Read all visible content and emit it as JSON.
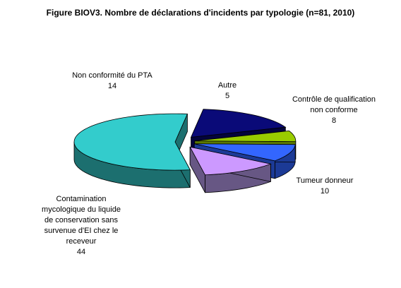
{
  "chart_data": {
    "type": "pie",
    "title": "Figure BIOV3. Nombre de déclarations d'incidents par typologie (n=81, 2010)",
    "slices": [
      {
        "label_lines": [
          "Non conformité du PTA"
        ],
        "value": 14,
        "color": "#0a0a78",
        "side_color": "#04043c"
      },
      {
        "label_lines": [
          "Autre"
        ],
        "value": 5,
        "color": "#99cc00",
        "side_color": "#5a7800"
      },
      {
        "label_lines": [
          "Contrôle de qualification",
          "non conforme"
        ],
        "value": 8,
        "color": "#3366ff",
        "side_color": "#1c3a96"
      },
      {
        "label_lines": [
          "Tumeur donneur"
        ],
        "value": 10,
        "color": "#cc99ff",
        "side_color": "#675784"
      },
      {
        "label_lines": [
          "Contamination",
          "mycologique du liquide",
          "de conservation sans",
          "survenue d'EI chez le",
          "receveur"
        ],
        "value": 44,
        "color": "#33cccc",
        "side_color": "#1c6f6f"
      }
    ]
  }
}
